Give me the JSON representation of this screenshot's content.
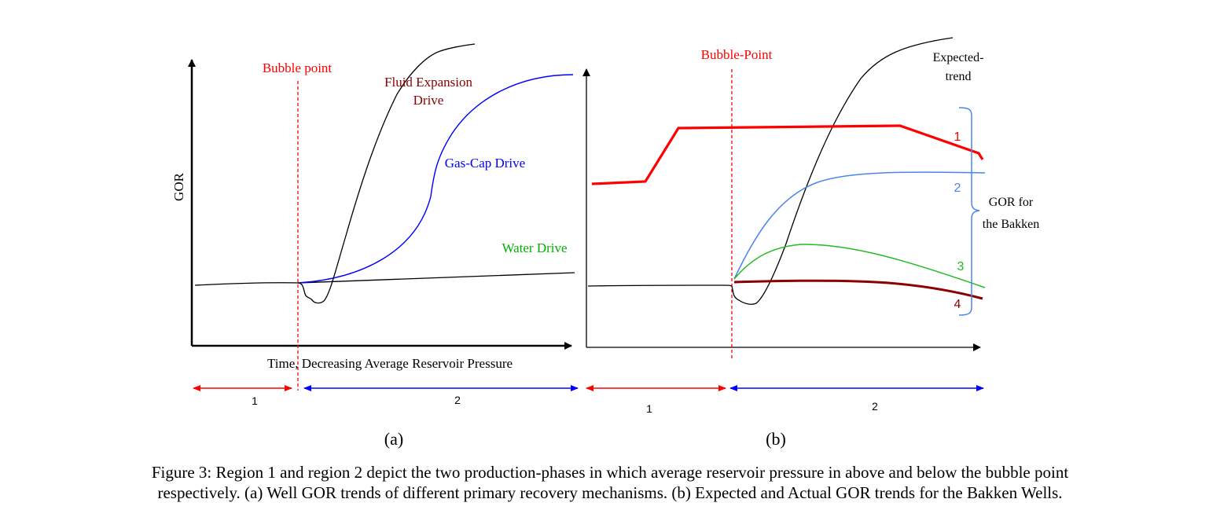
{
  "panel_a": {
    "y_axis_label": "GOR",
    "x_axis_label": "Time, Decreasing Average Reservoir Pressure",
    "bubble_point_label": "Bubble point",
    "curve_labels": {
      "fluid_expansion_line1": "Fluid Expansion",
      "fluid_expansion_line2": "Drive",
      "gas_cap": "Gas-Cap Drive",
      "water": "Water Drive"
    },
    "region_1_label": "1",
    "region_2_label": "2",
    "sublabel": "(a)"
  },
  "panel_b": {
    "bubble_point_label": "Bubble-Point",
    "expected_line1": "Expected-",
    "expected_line2": "trend",
    "bracket_line1": "GOR for",
    "bracket_line2": "the Bakken",
    "curve_numbers": [
      "1",
      "2",
      "3",
      "4"
    ],
    "region_1_label": "1",
    "region_2_label": "2",
    "sublabel": "(b)"
  },
  "caption": {
    "line1": "Figure 3: Region 1 and region 2 depict the two production-phases in which average reservoir pressure in above and below the bubble point",
    "line2": "respectively. (a) Well GOR trends of different primary recovery mechanisms. (b) Expected and Actual GOR trends for the Bakken Wells."
  },
  "colors": {
    "axis": "#000000",
    "bubble_point": "#ff0000",
    "fluid_expansion_label": "#8b0000",
    "gas_cap": "#0000ff",
    "water": "#00b000",
    "bakken_1": "#ff0000",
    "bakken_2": "#4a86e8",
    "bakken_3": "#22bb22",
    "bakken_4": "#8b0000",
    "region_1_arrow": "#ff0000",
    "region_2_arrow": "#0000ff"
  }
}
